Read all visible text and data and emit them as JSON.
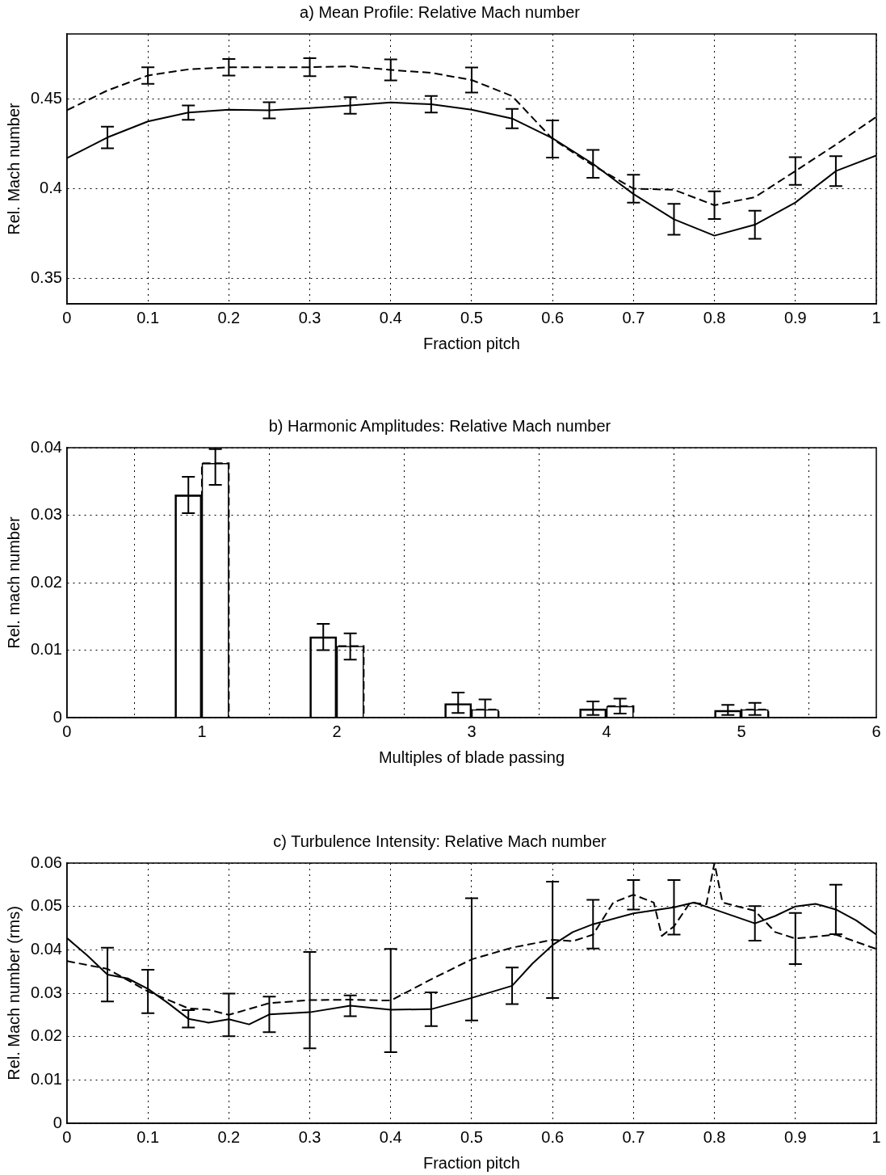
{
  "chart_data": [
    {
      "type": "line",
      "title": "a) Mean Profile: Relative Mach number",
      "xlabel": "Fraction pitch",
      "ylabel": "Rel. Mach number",
      "xlim": [
        0,
        1
      ],
      "xticks": [
        0,
        0.1,
        0.2,
        0.3,
        0.4,
        0.5,
        0.6,
        0.7,
        0.8,
        0.9,
        1
      ],
      "ylim": [
        0.336,
        0.486
      ],
      "yticks": [
        0.35,
        0.4,
        0.45
      ],
      "grid": true,
      "legend": false,
      "marker": "none",
      "series": [
        {
          "color": "#000000",
          "line_style": "solid",
          "x": [
            0,
            0.05,
            0.1,
            0.15,
            0.2,
            0.25,
            0.3,
            0.35,
            0.4,
            0.45,
            0.5,
            0.55,
            0.6,
            0.65,
            0.7,
            0.75,
            0.8,
            0.85,
            0.9,
            0.95,
            1
          ],
          "values": [
            0.417,
            0.4285,
            0.4374,
            0.4423,
            0.4439,
            0.4436,
            0.4448,
            0.4463,
            0.4479,
            0.4469,
            0.4439,
            0.439,
            0.428,
            0.4138,
            0.397,
            0.383,
            0.3739,
            0.38,
            0.3923,
            0.4098,
            0.4184
          ],
          "errors": [
            null,
            0.006,
            null,
            0.004,
            null,
            0.0045,
            null,
            0.0046,
            null,
            0.0046,
            null,
            0.0054,
            null,
            0.0077,
            null,
            0.0086,
            null,
            0.0078,
            null,
            0.0083,
            null
          ]
        },
        {
          "color": "#000000",
          "line_style": "dashed",
          "x": [
            0,
            0.05,
            0.1,
            0.15,
            0.2,
            0.25,
            0.3,
            0.35,
            0.4,
            0.45,
            0.5,
            0.55,
            0.6,
            0.65,
            0.7,
            0.75,
            0.8,
            0.85,
            0.9,
            0.95,
            1
          ],
          "values": [
            0.4436,
            0.4546,
            0.4629,
            0.4663,
            0.4675,
            0.4675,
            0.4675,
            0.468,
            0.466,
            0.4644,
            0.4604,
            0.4515,
            0.4276,
            0.4129,
            0.4,
            0.3994,
            0.3908,
            0.3953,
            0.4098,
            0.4245,
            0.4399
          ],
          "errors": [
            null,
            null,
            0.0046,
            null,
            0.0046,
            null,
            0.005,
            null,
            0.0058,
            null,
            0.007,
            null,
            0.0103,
            null,
            0.0077,
            null,
            0.0077,
            null,
            0.0077,
            null,
            null
          ]
        }
      ]
    },
    {
      "type": "bar",
      "title": "b) Harmonic Amplitudes: Relative Mach number",
      "xlabel": "Multiples of blade passing",
      "ylabel": "Rel. mach number",
      "xlim": [
        0,
        6
      ],
      "xticks": [
        0,
        1,
        2,
        3,
        4,
        5,
        6
      ],
      "ylim": [
        0,
        0.04
      ],
      "yticks": [
        0,
        0.01,
        0.02,
        0.03,
        0.04
      ],
      "grid": true,
      "legend": false,
      "series": [
        {
          "color": "#000000",
          "line_style": "solid",
          "x": [
            0.9,
            1.9,
            2.9,
            3.9,
            4.9
          ],
          "values": [
            0.033,
            0.012,
            0.0021,
            0.0013,
            0.0011
          ],
          "errors": [
            [
              0.0303,
              0.0357
            ],
            [
              0.01,
              0.0139
            ],
            [
              0.0007,
              0.0037
            ],
            [
              0.0004,
              0.0024
            ],
            [
              0.0004,
              0.0019
            ]
          ]
        },
        {
          "color": "#000000",
          "line_style": "dashed",
          "x": [
            1.1,
            2.1,
            3.1,
            4.1,
            5.1
          ],
          "values": [
            0.0377,
            0.0106,
            0.0012,
            0.0017,
            0.0012
          ],
          "errors": [
            [
              0.0345,
              0.0398
            ],
            [
              0.0086,
              0.0125
            ],
            [
              0,
              0.0027
            ],
            [
              0.0006,
              0.0028
            ],
            [
              0.0004,
              0.0022
            ]
          ]
        }
      ]
    },
    {
      "type": "line",
      "title": "c) Turbulence Intensity: Relative Mach number",
      "xlabel": "Fraction pitch",
      "ylabel": "Rel. Mach number (rms)",
      "xlim": [
        0,
        1
      ],
      "xticks": [
        0,
        0.1,
        0.2,
        0.3,
        0.4,
        0.5,
        0.6,
        0.7,
        0.8,
        0.9,
        1
      ],
      "ylim": [
        0,
        0.06
      ],
      "yticks": [
        0,
        0.01,
        0.02,
        0.03,
        0.04,
        0.05,
        0.06
      ],
      "grid": true,
      "legend": false,
      "marker": "none",
      "series": [
        {
          "color": "#000000",
          "line_style": "solid",
          "x": [
            0,
            0.025,
            0.05,
            0.075,
            0.1,
            0.125,
            0.15,
            0.175,
            0.2,
            0.225,
            0.25,
            0.3,
            0.35,
            0.4,
            0.45,
            0.5,
            0.55,
            0.575,
            0.6,
            0.625,
            0.65,
            0.7,
            0.75,
            0.775,
            0.8,
            0.85,
            0.875,
            0.9,
            0.925,
            0.95,
            0.975,
            1
          ],
          "values": [
            0.0427,
            0.0387,
            0.0343,
            0.0334,
            0.031,
            0.0277,
            0.0241,
            0.0232,
            0.024,
            0.0228,
            0.0251,
            0.0256,
            0.0271,
            0.0262,
            0.0263,
            0.0289,
            0.0317,
            0.0368,
            0.0411,
            0.0441,
            0.0459,
            0.0484,
            0.0498,
            0.0509,
            0.0493,
            0.0461,
            0.0478,
            0.05,
            0.0506,
            0.0493,
            0.0468,
            0.0435
          ],
          "errors": [
            null,
            null,
            0.0062,
            null,
            null,
            null,
            0.002,
            null,
            null,
            null,
            0.0041,
            null,
            0.0024,
            null,
            0.0039,
            null,
            0.0042,
            null,
            null,
            null,
            0.0056,
            null,
            0.0063,
            null,
            null,
            0.004,
            null,
            null,
            null,
            0.0057,
            null,
            null
          ]
        },
        {
          "color": "#000000",
          "line_style": "dashed",
          "x": [
            0,
            0.05,
            0.1,
            0.15,
            0.175,
            0.2,
            0.25,
            0.3,
            0.35,
            0.4,
            0.45,
            0.5,
            0.55,
            0.6,
            0.625,
            0.65,
            0.675,
            0.7,
            0.725,
            0.735,
            0.75,
            0.77,
            0.79,
            0.8,
            0.81,
            0.85,
            0.875,
            0.9,
            0.95,
            1
          ],
          "values": [
            0.0374,
            0.0356,
            0.0304,
            0.0265,
            0.0262,
            0.025,
            0.0277,
            0.0284,
            0.0285,
            0.0283,
            0.0332,
            0.0378,
            0.0405,
            0.0423,
            0.042,
            0.0435,
            0.0509,
            0.0527,
            0.0509,
            0.0432,
            0.0454,
            0.0509,
            0.0505,
            0.06,
            0.0509,
            0.049,
            0.0441,
            0.0426,
            0.0435,
            0.0402
          ],
          "errors": [
            null,
            null,
            0.005,
            null,
            null,
            0.0049,
            null,
            0.0111,
            null,
            0.0119,
            null,
            0.0141,
            null,
            0.0134,
            null,
            null,
            null,
            0.0034,
            null,
            null,
            null,
            null,
            null,
            null,
            null,
            null,
            null,
            0.0059,
            null,
            null
          ]
        }
      ]
    }
  ]
}
